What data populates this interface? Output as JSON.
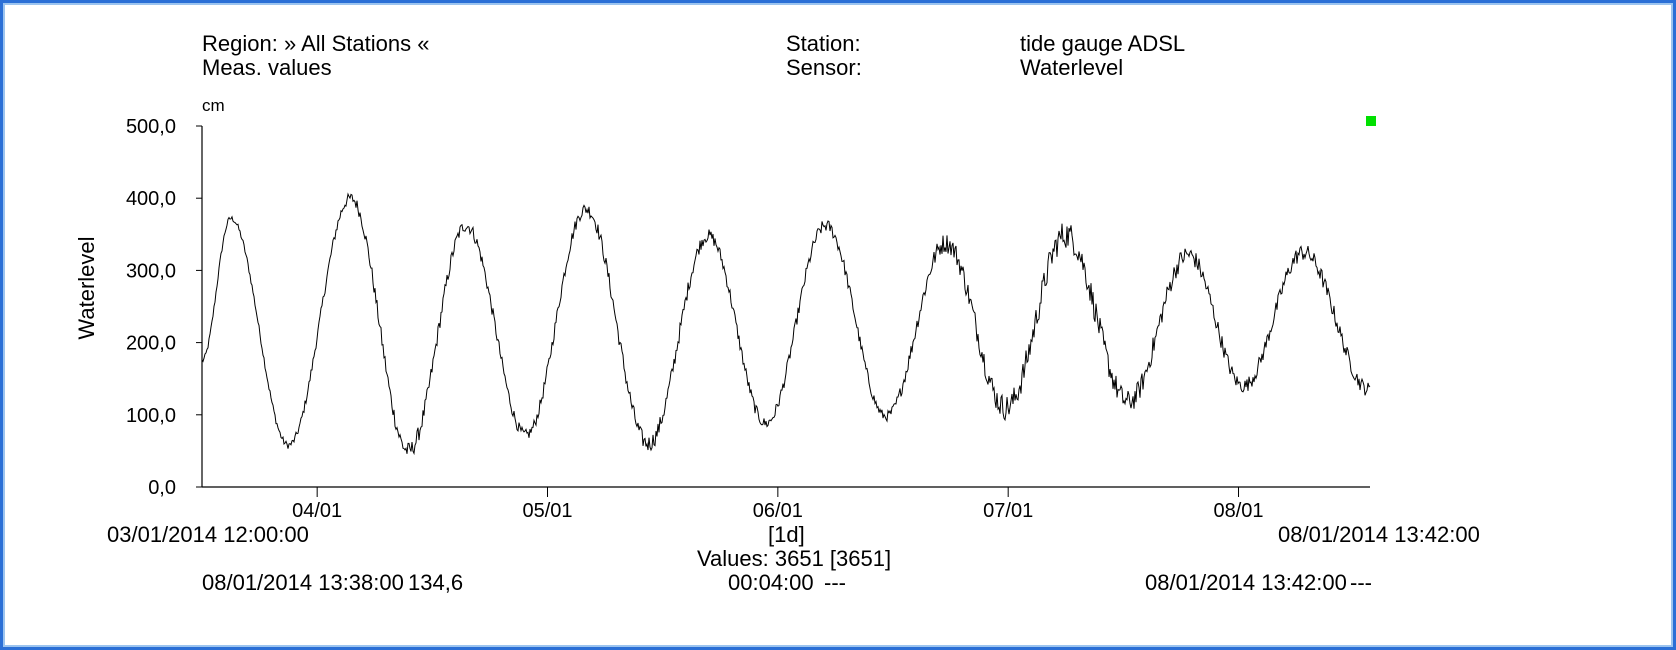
{
  "header": {
    "region_label": "Region: » All Stations «",
    "meas_label": "Meas. values",
    "station_label": "Station:",
    "station_value": "tide gauge ADSL",
    "sensor_label": "Sensor:",
    "sensor_value": "Waterlevel"
  },
  "footer": {
    "start_time": "03/01/2014 12:00:00",
    "end_time": "08/01/2014 13:42:00",
    "interval": "[1d]",
    "values_count": "Values: 3651 [3651]",
    "cursor_time": "08/01/2014 13:38:00",
    "cursor_value": "134,6",
    "step": "00:04:00",
    "step_value": "---",
    "cursor2_time": "08/01/2014 13:42:00",
    "cursor2_value": "---"
  },
  "colors": {
    "frame": "#2b6fd6",
    "line": "#000000",
    "marker": "#00e000"
  },
  "chart_data": {
    "type": "line",
    "title": "",
    "xlabel": "",
    "ylabel": "Waterlevel",
    "y_unit": "cm",
    "xlim": [
      "03/01/2014 12:00:00",
      "08/01/2014 13:42:00"
    ],
    "ylim": [
      0,
      500
    ],
    "y_ticks": [
      0,
      100,
      200,
      300,
      400,
      500
    ],
    "y_tick_labels": [
      "0,0",
      "100,0",
      "200,0",
      "300,0",
      "400,0",
      "500,0"
    ],
    "x_ticks": [
      "04/01/2014 00:00",
      "05/01/2014 00:00",
      "06/01/2014 00:00",
      "07/01/2014 00:00",
      "08/01/2014 00:00"
    ],
    "x_tick_labels": [
      "04/01",
      "05/01",
      "06/01",
      "07/01",
      "08/01"
    ],
    "grid": false,
    "legend": "none",
    "series": [
      {
        "x": [
          "03/01/2014 12:00",
          "03/01/2014 15:00",
          "03/01/2014 21:00",
          "04/01/2014 03:30",
          "04/01/2014 09:30",
          "04/01/2014 15:30",
          "04/01/2014 21:45",
          "05/01/2014 04:00",
          "05/01/2014 10:30",
          "05/01/2014 16:45",
          "05/01/2014 22:45",
          "06/01/2014 05:00",
          "06/01/2014 11:15",
          "06/01/2014 17:30",
          "06/01/2014 23:45",
          "07/01/2014 06:00",
          "07/01/2014 12:30",
          "07/01/2014 18:45",
          "08/01/2014 00:30",
          "08/01/2014 06:45",
          "08/01/2014 13:38"
        ],
        "y": [
          175,
          372,
          58,
          400,
          50,
          362,
          72,
          385,
          60,
          348,
          88,
          362,
          98,
          338,
          110,
          350,
          118,
          322,
          140,
          325,
          135
        ],
        "noise": [
          4,
          4,
          5,
          8,
          12,
          9,
          8,
          9,
          12,
          9,
          8,
          9,
          7,
          14,
          18,
          20,
          16,
          13,
          10,
          12,
          10
        ]
      }
    ]
  }
}
